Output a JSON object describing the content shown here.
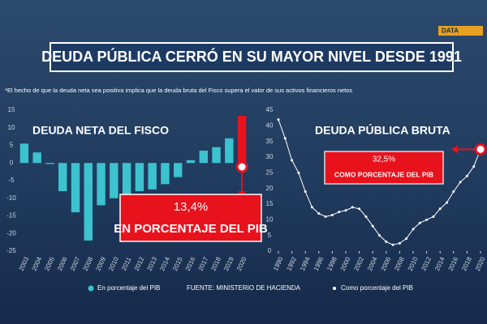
{
  "brand": "DATA",
  "title": "DEUDA PÚBLICA CERRÓ EN SU MAYOR NIVEL DESDE 1991",
  "footnote": "*El hecho de que la deuda neta sea positiva implica que la deuda bruta del Fisco supera el valor de sus activos financieros netos",
  "source": "FUENTE: MINISTERIO DE HACIENDA",
  "chart_data": [
    {
      "type": "bar",
      "title": "DEUDA NETA DEL FISCO",
      "categories": [
        "2003",
        "2004",
        "2005",
        "2006",
        "2007",
        "2008",
        "2009",
        "2010",
        "2011",
        "2012",
        "2013",
        "2014",
        "2015",
        "2016",
        "2017",
        "2018",
        "2019",
        "2020"
      ],
      "series": [
        {
          "name": "En porcentaje del PIB",
          "color": "#3cc3cf",
          "values": [
            5.5,
            3,
            -0.3,
            -8,
            -14,
            -22,
            -12,
            -10,
            -9,
            -8,
            -7.5,
            -6,
            -4,
            0.8,
            3.5,
            4.5,
            7,
            13.4
          ],
          "colors": [
            "#3cc3cf",
            "#3cc3cf",
            "#3cc3cf",
            "#3cc3cf",
            "#3cc3cf",
            "#3cc3cf",
            "#3cc3cf",
            "#3cc3cf",
            "#3cc3cf",
            "#3cc3cf",
            "#3cc3cf",
            "#3cc3cf",
            "#3cc3cf",
            "#3cc3cf",
            "#3cc3cf",
            "#3cc3cf",
            "#3cc3cf",
            "#e8121c"
          ]
        }
      ],
      "annotation": [
        "13,4%",
        "EN PORCENTAJE DEL PIB"
      ],
      "ylim": [
        -25,
        15
      ],
      "yticks": [
        -25,
        -20,
        -15,
        -10,
        -5,
        0,
        5,
        10,
        15
      ]
    },
    {
      "type": "line",
      "title": "DEUDA PÚBLICA BRUTA",
      "x": [
        1990,
        1991,
        1992,
        1993,
        1994,
        1995,
        1996,
        1997,
        1998,
        1999,
        2000,
        2001,
        2002,
        2003,
        2004,
        2005,
        2006,
        2007,
        2008,
        2009,
        2010,
        2011,
        2012,
        2013,
        2014,
        2015,
        2016,
        2017,
        2018,
        2019,
        2020
      ],
      "series": [
        {
          "name": "Como porcentaje del PIB",
          "color": "#ffffff",
          "values": [
            42,
            36,
            29,
            25,
            19,
            14,
            12,
            11,
            11.5,
            12.5,
            13,
            14,
            13.5,
            11,
            8,
            5,
            3,
            2,
            2.5,
            4,
            7,
            9,
            10,
            11,
            13.5,
            15.5,
            19,
            22,
            24,
            27,
            32.5
          ]
        }
      ],
      "annotation": [
        "32,5%",
        "COMO PORCENTAJE DEL PIB"
      ],
      "xlim": [
        1990,
        2020
      ],
      "xticks": [
        1990,
        1992,
        1994,
        1996,
        1998,
        2000,
        2002,
        2004,
        2006,
        2008,
        2010,
        2012,
        2014,
        2016,
        2018,
        2020
      ],
      "ylim": [
        0,
        45
      ],
      "yticks": [
        0,
        5,
        10,
        15,
        20,
        25,
        30,
        35,
        40,
        45
      ]
    }
  ]
}
